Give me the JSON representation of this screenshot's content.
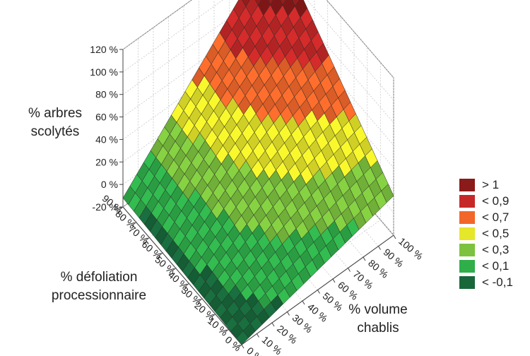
{
  "chart_data": {
    "type": "surface",
    "title": "",
    "zlabel": {
      "line1": "% arbres",
      "line2": "scolytés"
    },
    "ylabel": {
      "line1": "% défoliation",
      "line2": "processionnaire"
    },
    "xlabel": {
      "line1": "% volume",
      "line2": "chablis"
    },
    "z_ticks": [
      "-20 %",
      "0 %",
      "20 %",
      "40 %",
      "60 %",
      "80 %",
      "100 %",
      "120 %"
    ],
    "z_values": [
      -0.2,
      0,
      0.2,
      0.4,
      0.6,
      0.8,
      1.0,
      1.2
    ],
    "y_ticks": [
      "0 %",
      "10 %",
      "20 %",
      "30 %",
      "40 %",
      "50 %",
      "60 %",
      "70 %",
      "80 %",
      "90 %"
    ],
    "x_ticks": [
      "0 %",
      "10 %",
      "20 %",
      "30 %",
      "40 %",
      "50 %",
      "60 %",
      "70 %",
      "80 %",
      "90 %",
      "100 %"
    ],
    "xlim": [
      0,
      1
    ],
    "ylim": [
      0,
      0.9
    ],
    "zlim": [
      -0.2,
      1.2
    ],
    "surface_corners": {
      "x0_y0": -0.2,
      "x0_y90": -0.12,
      "x100_y0": 0.15,
      "x100_y90": 1.22
    },
    "grid": true,
    "legend": {
      "position": "right",
      "items": [
        {
          "label": "> 1",
          "color": "#8b1a1a"
        },
        {
          "label": "< 0,9",
          "color": "#c62828"
        },
        {
          "label": "< 0,7",
          "color": "#f2662a"
        },
        {
          "label": "< 0,5",
          "color": "#e6e62a"
        },
        {
          "label": "< 0,3",
          "color": "#7cc23e"
        },
        {
          "label": "< 0,1",
          "color": "#2fae4a"
        },
        {
          "label": "< -0,1",
          "color": "#17673a"
        }
      ]
    }
  }
}
